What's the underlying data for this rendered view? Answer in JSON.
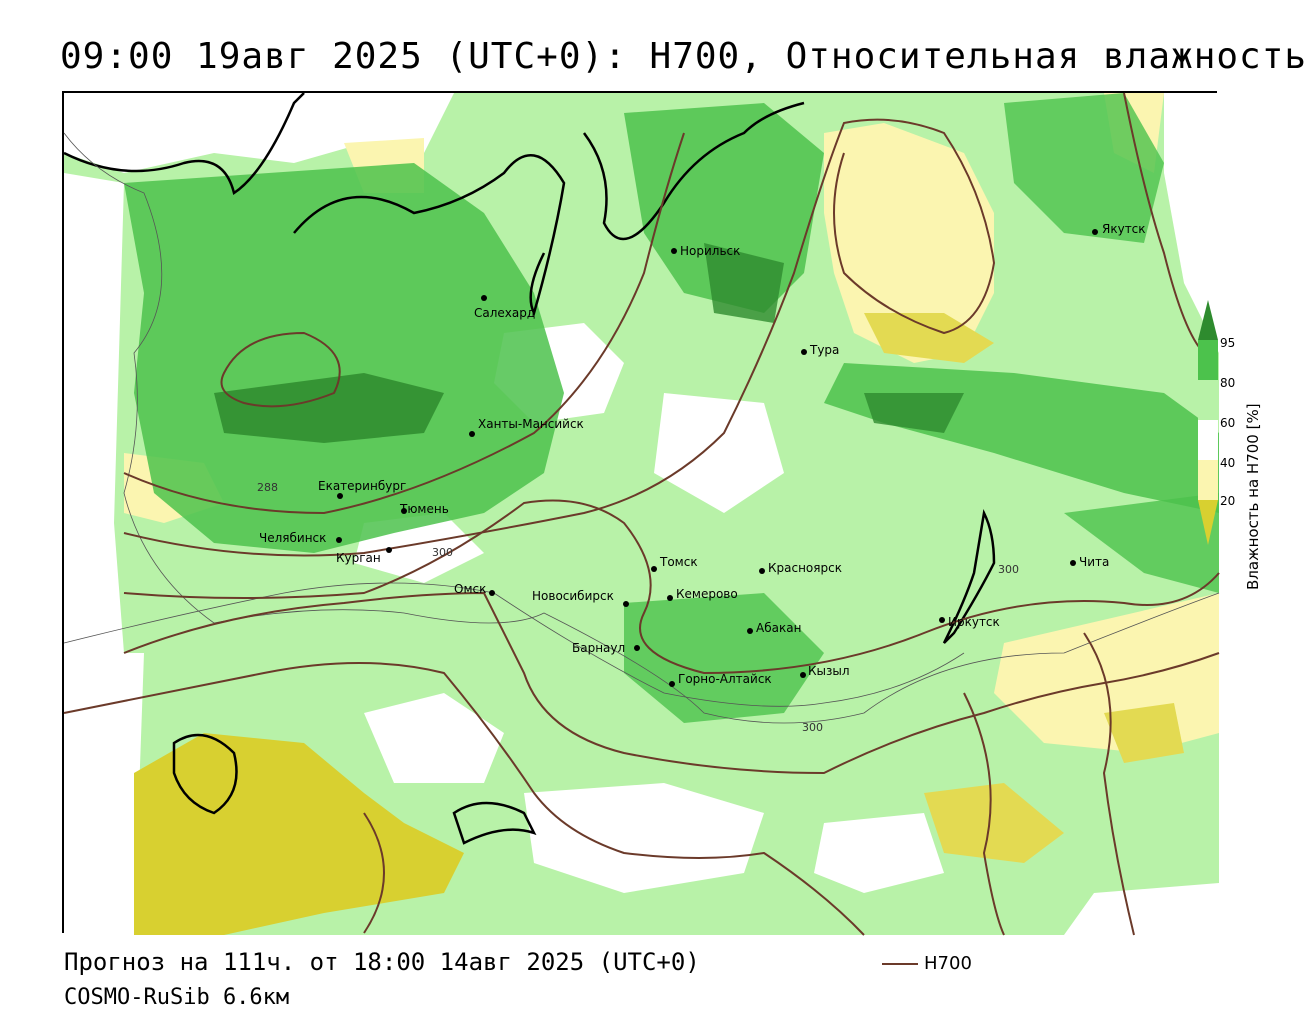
{
  "title": "09:00 19авг 2025 (UTC+0): H700, Относительная влажность",
  "footer": {
    "forecast": "Прогноз на 111ч. от 18:00 14авг 2025 (UTC+0)",
    "model": "COSMO-RuSib 6.6км"
  },
  "legend": {
    "contour_label": "H700",
    "contour_color": "#6b3a2a"
  },
  "colorbar": {
    "title": "Влажность на H700 [%]",
    "ticks": [
      "95",
      "80",
      "60",
      "40",
      "20"
    ],
    "colors": {
      "c95": "#2e8b2e",
      "c80": "#4cc24c",
      "c60": "#b8f2a8",
      "c40": "#ffffff",
      "c20": "#fbf5b0",
      "c0": "#d8d030"
    }
  },
  "cities": [
    {
      "name": "Якутск"
    },
    {
      "name": "Норильск"
    },
    {
      "name": "Салехард"
    },
    {
      "name": "Тура"
    },
    {
      "name": "Ханты-Мансийск"
    },
    {
      "name": "Екатеринбург"
    },
    {
      "name": "Тюмень"
    },
    {
      "name": "Челябинск"
    },
    {
      "name": "Курган"
    },
    {
      "name": "Омск"
    },
    {
      "name": "Новосибирск"
    },
    {
      "name": "Томск"
    },
    {
      "name": "Кемерово"
    },
    {
      "name": "Красноярск"
    },
    {
      "name": "Барнаул"
    },
    {
      "name": "Абакан"
    },
    {
      "name": "Горно-Алтайск"
    },
    {
      "name": "Кызыл"
    },
    {
      "name": "Иркутск"
    },
    {
      "name": "Чита"
    }
  ],
  "contour_labels": [
    "288",
    "300",
    "300",
    "300"
  ]
}
